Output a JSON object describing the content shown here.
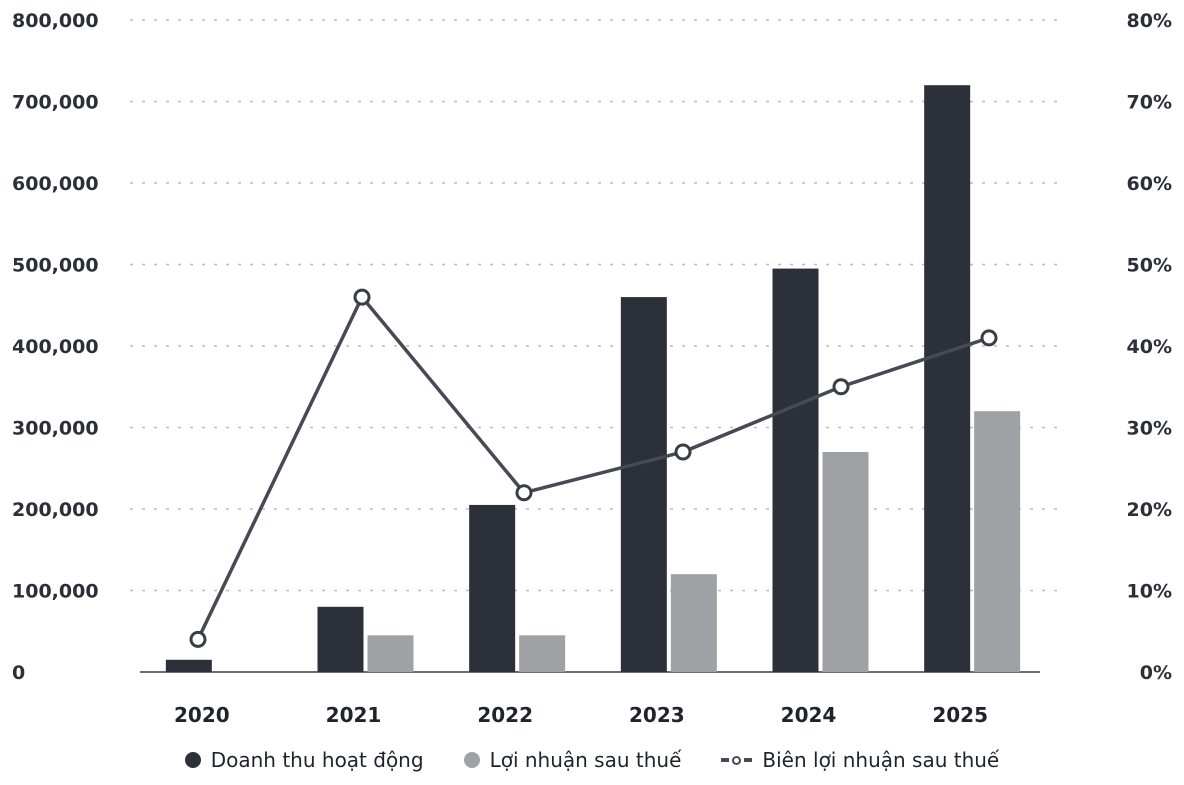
{
  "chart_data": {
    "type": "bar",
    "categories": [
      "2020",
      "2021",
      "2022",
      "2023",
      "2024",
      "2025"
    ],
    "series": [
      {
        "name": "Doanh thu hoạt động",
        "kind": "bar",
        "axis": "left",
        "color": "#2b303b",
        "values": [
          15000,
          80000,
          205000,
          460000,
          495000,
          720000
        ]
      },
      {
        "name": "Lợi nhuận sau thuế",
        "kind": "bar",
        "axis": "left",
        "color": "#9fa1a5",
        "values": [
          0,
          45000,
          45000,
          120000,
          270000,
          320000
        ]
      },
      {
        "name": "Biên lợi nhuận sau thuế",
        "kind": "line",
        "axis": "right",
        "color": "#454a55",
        "values": [
          4,
          46,
          22,
          27,
          35,
          41
        ]
      }
    ],
    "y_left": {
      "lim": [
        0,
        800000
      ],
      "ticks": [
        "0",
        "100,000",
        "200,000",
        "300,000",
        "400,000",
        "500,000",
        "600,000",
        "700,000",
        "800,000"
      ]
    },
    "y_right": {
      "lim": [
        0,
        80
      ],
      "ticks": [
        "0%",
        "10%",
        "20%",
        "30%",
        "40%",
        "50%",
        "60%",
        "70%",
        "80%"
      ]
    },
    "grid": true,
    "legend_position": "bottom"
  },
  "legend": {
    "items": [
      "Doanh thu hoạt động",
      "Lợi nhuận sau thuế",
      "Biên lợi nhuận sau thuế"
    ]
  }
}
